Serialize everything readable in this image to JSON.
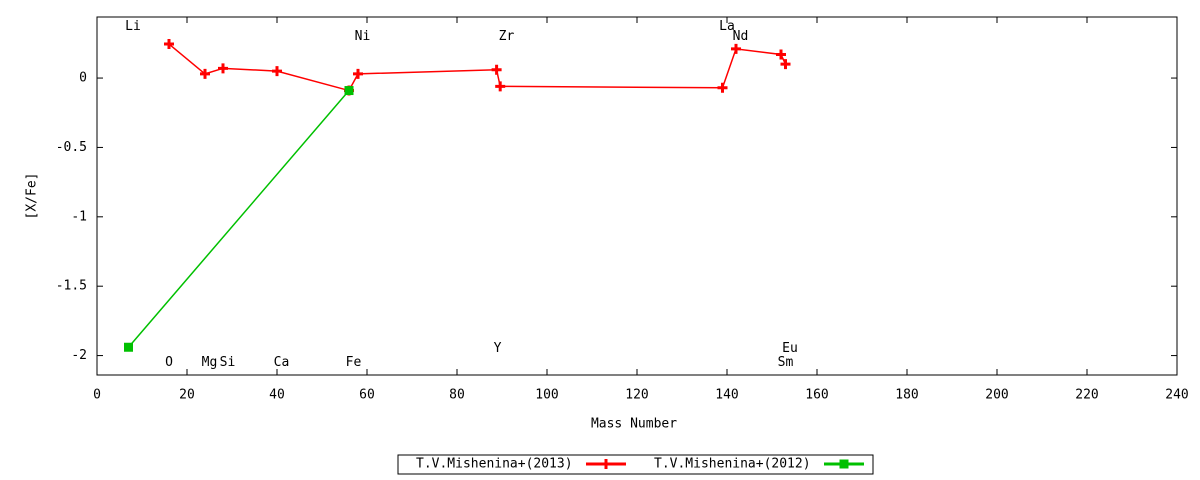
{
  "chart_data": {
    "type": "line",
    "xlabel": "Mass Number",
    "ylabel": "[X/Fe]",
    "xlim": [
      0,
      240
    ],
    "ylim": [
      -2.14,
      0.44
    ],
    "xticks": [
      0,
      20,
      40,
      60,
      80,
      100,
      120,
      140,
      160,
      180,
      200,
      220,
      240
    ],
    "yticks": [
      0,
      -0.5,
      -1,
      -1.5,
      -2
    ],
    "grid": false,
    "legend": "bottom",
    "series": [
      {
        "name": "T.V.Mishenina+(2013)",
        "color": "#ff0000",
        "marker": "plus",
        "x": [
          16,
          24,
          28,
          40,
          56,
          58,
          88.8,
          89.6,
          139,
          142,
          152,
          153
        ],
        "values": [
          0.245,
          0.03,
          0.07,
          0.05,
          -0.09,
          0.03,
          0.06,
          -0.06,
          -0.07,
          0.21,
          0.17,
          0.1
        ]
      },
      {
        "name": "T.V.Mishenina+(2012)",
        "color": "#00c000",
        "marker": "square",
        "x": [
          7,
          56
        ],
        "values": [
          -1.94,
          -0.09
        ]
      }
    ],
    "annotations": [
      {
        "text": "Li",
        "x": 8,
        "y": 0.37
      },
      {
        "text": "Ni",
        "x": 59,
        "y": 0.3
      },
      {
        "text": "Zr",
        "x": 91,
        "y": 0.3
      },
      {
        "text": "La",
        "x": 140,
        "y": 0.37
      },
      {
        "text": "Nd",
        "x": 143,
        "y": 0.3
      },
      {
        "text": "O",
        "x": 16,
        "y": -2.05
      },
      {
        "text": "Mg",
        "x": 25,
        "y": -2.05
      },
      {
        "text": "Si",
        "x": 29,
        "y": -2.05
      },
      {
        "text": "Ca",
        "x": 41,
        "y": -2.05
      },
      {
        "text": "Fe",
        "x": 57,
        "y": -2.05
      },
      {
        "text": "Y",
        "x": 89,
        "y": -1.95
      },
      {
        "text": "Eu",
        "x": 154,
        "y": -1.95
      },
      {
        "text": "Sm",
        "x": 153,
        "y": -2.05
      }
    ]
  }
}
